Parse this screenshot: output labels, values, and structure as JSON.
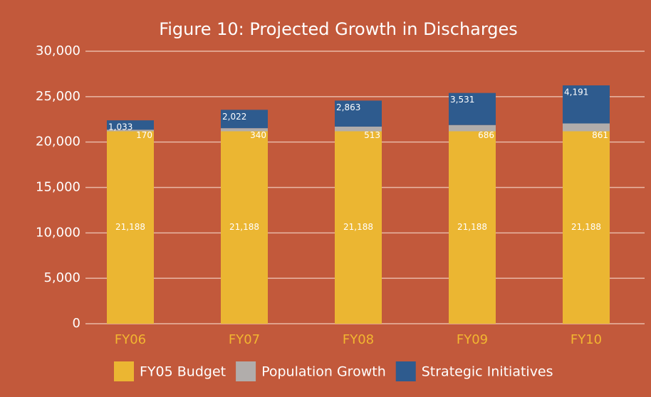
{
  "chart_data": {
    "type": "stacked_bar",
    "title": "Figure 10: Projected Growth in Discharges",
    "categories": [
      "FY06",
      "FY07",
      "FY08",
      "FY09",
      "FY10"
    ],
    "series": [
      {
        "name": "FY05 Budget",
        "color": "#ebb632",
        "values": [
          21188,
          21188,
          21188,
          21188,
          21188
        ],
        "value_labels": [
          "21,188",
          "21,188",
          "21,188",
          "21,188",
          "21,188"
        ]
      },
      {
        "name": "Population Growth",
        "color": "#b1adab",
        "values": [
          170,
          340,
          513,
          686,
          861
        ]
      },
      {
        "name": "Strategic Initiatives",
        "color": "#2e5b8e",
        "values": [
          1033,
          2022,
          2863,
          3531,
          4191
        ],
        "value_labels": [
          "1,033",
          "2,022",
          "2,863",
          "3,531",
          "4,191"
        ]
      }
    ],
    "ylim": [
      0,
      30000
    ],
    "yticks": [
      0,
      {
        "value": 5000,
        "label": "5,000"
      },
      {
        "value": 10000,
        "label": "10,000"
      },
      {
        "value": 15000,
        "label": "15,000"
      },
      {
        "value": 20000,
        "label": "20,000"
      },
      {
        "value": 25000,
        "label": "25,000"
      },
      {
        "value": 30000,
        "label": "30,000"
      }
    ],
    "grid": true,
    "legend": "bottom",
    "category_color": "#f2b630"
  }
}
